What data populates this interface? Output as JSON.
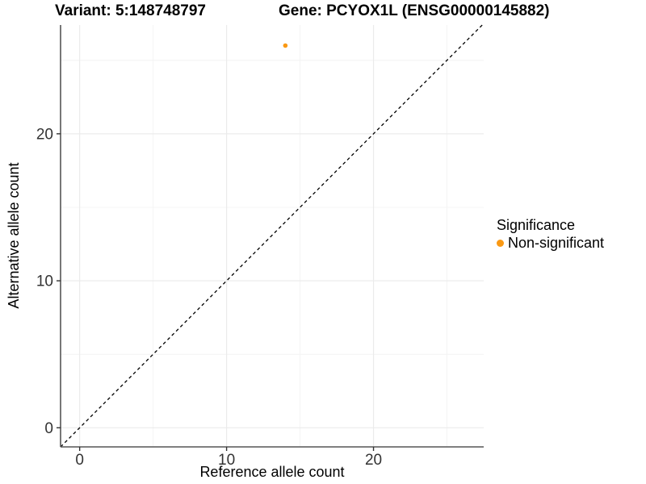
{
  "chart_data": {
    "type": "scatter",
    "title_left": "Variant: 5:148748797",
    "title_right": "Gene: PCYOX1L (ENSG00000145882)",
    "xlabel": "Reference allele count",
    "ylabel": "Alternative allele count",
    "xlim": [
      -1.3,
      27.5
    ],
    "ylim": [
      -1.3,
      27.4
    ],
    "x_ticks": [
      0,
      10,
      20
    ],
    "y_ticks": [
      0,
      10,
      20
    ],
    "x_minor": [
      5,
      15,
      25
    ],
    "y_minor": [
      5,
      15,
      25
    ],
    "grid": true,
    "identity_line": {
      "style": "dashed",
      "color": "#000000"
    },
    "series": [
      {
        "name": "Non-significant",
        "color": "#FA9914",
        "points": [
          {
            "x": 14,
            "y": 26
          }
        ]
      }
    ],
    "legend": {
      "title": "Significance",
      "position": "right",
      "items": [
        {
          "label": "Non-significant",
          "color": "#FA9914"
        }
      ]
    },
    "colors": {
      "grid_major": "#EBEBEB",
      "grid_minor": "#F4F4F4",
      "axis_line": "#555555",
      "tick_mark": "#333333",
      "tick_label": "#333333"
    }
  }
}
